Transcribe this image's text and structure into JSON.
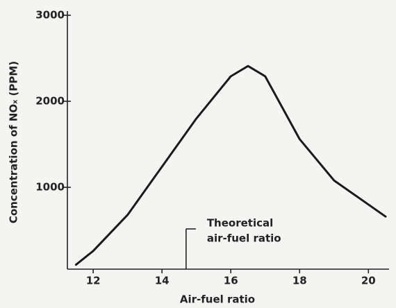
{
  "chart_data": {
    "type": "line",
    "x_label": "Air-fuel ratio",
    "y_label": "Concentration of NOₓ (PPM)",
    "x": [
      11.5,
      12,
      13,
      14,
      15,
      16,
      16.5,
      17,
      18,
      19,
      20.5
    ],
    "values": [
      100,
      260,
      680,
      1240,
      1800,
      2290,
      2410,
      2290,
      1560,
      1080,
      660
    ],
    "color": "#1a1a1a",
    "xlim": [
      11.25,
      20.6
    ],
    "xticks": [
      12,
      14,
      16,
      18,
      20
    ],
    "ylim": [
      0,
      3000
    ],
    "yticks": [
      1000,
      2000,
      3000
    ],
    "grid": false,
    "annotation": {
      "lines": [
        "Theoretical",
        "air-fuel ratio"
      ],
      "x": 14.7
    }
  }
}
